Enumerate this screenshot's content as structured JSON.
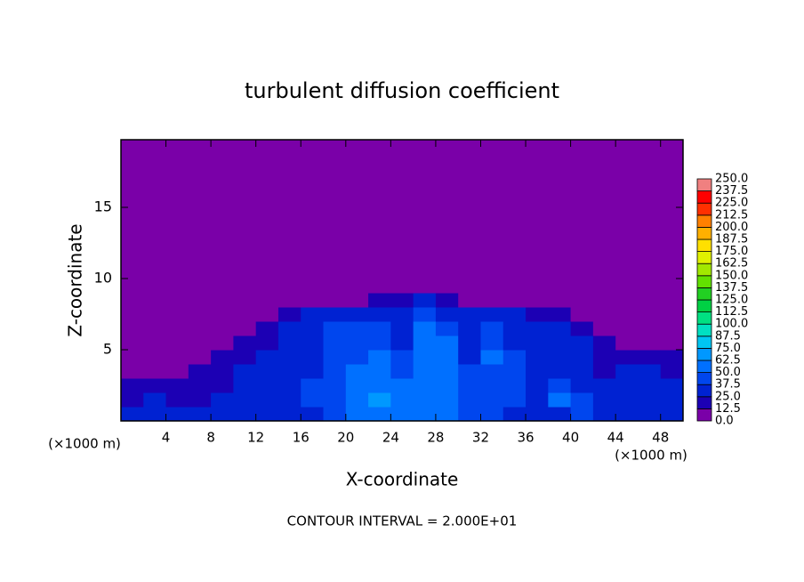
{
  "chart_data": {
    "type": "heatmap",
    "title": "turbulent diffusion coefficient",
    "x_label": "X-coordinate",
    "y_label": "Z-coordinate",
    "x_units": [
      "(×1000 m)",
      "(×1000 m)"
    ],
    "footnote": "CONTOUR INTERVAL = 2.000E+01",
    "xlim": [
      0,
      50
    ],
    "ylim": [
      0,
      19.75
    ],
    "xticks": [
      4,
      8,
      12,
      16,
      20,
      24,
      28,
      32,
      36,
      40,
      44,
      48
    ],
    "yticks": [
      5,
      10,
      15
    ],
    "xbins": [
      0,
      2,
      4,
      6,
      8,
      10,
      12,
      14,
      16,
      18,
      20,
      22,
      24,
      26,
      28,
      30,
      32,
      34,
      36,
      38,
      40,
      42,
      44,
      46,
      48,
      50
    ],
    "ybins": [
      0,
      1,
      2,
      3,
      4,
      5,
      6,
      7,
      8,
      9,
      19.75
    ],
    "values": [
      [
        25,
        25,
        25,
        25,
        25,
        30,
        30,
        30,
        35,
        40,
        55,
        60,
        50,
        60,
        55,
        45,
        40,
        35,
        30,
        35,
        40,
        35,
        30,
        30,
        30
      ],
      [
        20,
        25,
        20,
        20,
        25,
        25,
        30,
        35,
        40,
        45,
        60,
        65,
        55,
        60,
        55,
        45,
        40,
        40,
        35,
        50,
        45,
        30,
        25,
        25,
        30
      ],
      [
        15,
        15,
        15,
        20,
        20,
        25,
        30,
        35,
        40,
        45,
        55,
        60,
        50,
        60,
        55,
        45,
        40,
        40,
        35,
        40,
        35,
        25,
        25,
        30,
        25
      ],
      [
        5,
        5,
        10,
        15,
        20,
        25,
        25,
        30,
        35,
        45,
        50,
        55,
        45,
        55,
        55,
        40,
        45,
        40,
        30,
        30,
        25,
        20,
        25,
        25,
        20
      ],
      [
        0,
        0,
        5,
        5,
        15,
        20,
        25,
        30,
        35,
        45,
        45,
        50,
        40,
        55,
        50,
        35,
        50,
        40,
        30,
        30,
        25,
        20,
        20,
        20,
        15
      ],
      [
        0,
        0,
        0,
        0,
        5,
        15,
        20,
        25,
        35,
        40,
        40,
        45,
        35,
        55,
        50,
        35,
        45,
        35,
        30,
        30,
        25,
        15,
        10,
        10,
        5
      ],
      [
        0,
        0,
        0,
        0,
        0,
        0,
        15,
        25,
        35,
        45,
        40,
        40,
        30,
        50,
        45,
        30,
        40,
        35,
        30,
        30,
        20,
        5,
        0,
        0,
        0
      ],
      [
        0,
        0,
        0,
        0,
        0,
        0,
        0,
        20,
        30,
        35,
        30,
        30,
        25,
        40,
        35,
        25,
        25,
        25,
        20,
        20,
        5,
        0,
        0,
        0,
        0
      ],
      [
        0,
        0,
        0,
        0,
        0,
        0,
        0,
        0,
        10,
        10,
        10,
        15,
        20,
        30,
        20,
        10,
        10,
        5,
        5,
        0,
        0,
        0,
        0,
        0,
        0
      ],
      [
        0,
        0,
        0,
        0,
        0,
        0,
        0,
        0,
        0,
        0,
        0,
        0,
        0,
        0,
        0,
        0,
        0,
        0,
        0,
        0,
        0,
        0,
        0,
        0,
        0
      ]
    ],
    "levels": [
      {
        "value": 0,
        "label": "0.0"
      },
      12.5,
      {
        "value": 25,
        "label": "25.0"
      },
      37.5,
      {
        "value": 50,
        "label": "50.0"
      },
      62.5,
      {
        "value": 75,
        "label": "75.0"
      },
      87.5,
      {
        "value": 100,
        "label": "100.0"
      },
      112.5,
      {
        "value": 125,
        "label": "125.0"
      },
      137.5,
      {
        "value": 150,
        "label": "150.0"
      },
      162.5,
      {
        "value": 175,
        "label": "175.0"
      },
      187.5,
      {
        "value": 200,
        "label": "200.0"
      },
      212.5,
      {
        "value": 225,
        "label": "225.0"
      },
      237.5,
      {
        "value": 250,
        "label": "250.0"
      }
    ],
    "colors": [
      "#7a00a8",
      "#1c00b4",
      "#0022d2",
      "#0046ee",
      "#0070ff",
      "#0098ff",
      "#00c6f2",
      "#00e0c2",
      "#00e082",
      "#00d044",
      "#22d022",
      "#62e000",
      "#a2e800",
      "#e0f000",
      "#ffe000",
      "#ffb000",
      "#ff8000",
      "#ff3000",
      "#ff0000",
      "#f08080"
    ]
  }
}
